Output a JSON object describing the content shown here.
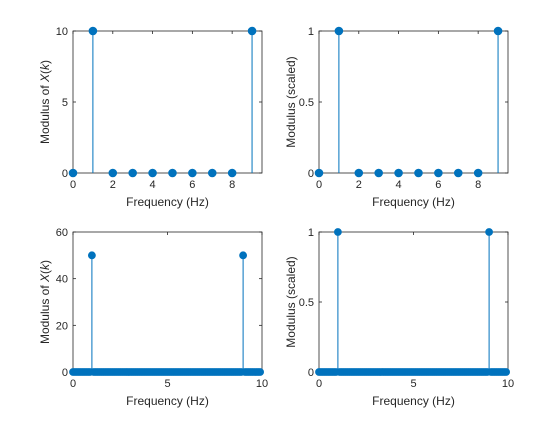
{
  "colors": {
    "stem": "#0072BD",
    "axis": "#262626",
    "background": "#ffffff"
  },
  "chart_data": [
    {
      "type": "stem",
      "position": "top-left",
      "xlabel": "Frequency (Hz)",
      "ylabel_parts": [
        "Modulus of ",
        "X",
        "(",
        "k",
        ")"
      ],
      "xlim": [
        0,
        9.5
      ],
      "ylim": [
        0,
        10
      ],
      "xticks": [
        0,
        2,
        4,
        6,
        8
      ],
      "xtick_labels": [
        "0",
        "2",
        "4",
        "6",
        "8"
      ],
      "yticks": [
        0,
        5,
        10
      ],
      "ytick_labels": [
        "0",
        "5",
        "10"
      ],
      "x": [
        0,
        1,
        2,
        3,
        4,
        5,
        6,
        7,
        8,
        9
      ],
      "y": [
        0,
        10,
        0,
        0,
        0,
        0,
        0,
        0,
        0,
        10
      ]
    },
    {
      "type": "stem",
      "position": "top-right",
      "xlabel": "Frequency (Hz)",
      "ylabel": "Modulus (scaled)",
      "xlim": [
        0,
        9.5
      ],
      "ylim": [
        0,
        1
      ],
      "xticks": [
        0,
        2,
        4,
        6,
        8
      ],
      "xtick_labels": [
        "0",
        "2",
        "4",
        "6",
        "8"
      ],
      "yticks": [
        0,
        0.5,
        1
      ],
      "ytick_labels": [
        "0",
        "0.5",
        "1"
      ],
      "x": [
        0,
        1,
        2,
        3,
        4,
        5,
        6,
        7,
        8,
        9
      ],
      "y": [
        0,
        1,
        0,
        0,
        0,
        0,
        0,
        0,
        0,
        1
      ]
    },
    {
      "type": "stem",
      "position": "bottom-left",
      "xlabel": "Frequency (Hz)",
      "ylabel_parts": [
        "Modulus of ",
        "X",
        "(",
        "k",
        ")"
      ],
      "xlim": [
        0,
        10
      ],
      "ylim": [
        0,
        60
      ],
      "xticks": [
        0,
        5,
        10
      ],
      "xtick_labels": [
        "0",
        "5",
        "10"
      ],
      "yticks": [
        0,
        20,
        40,
        60
      ],
      "ytick_labels": [
        "0",
        "20",
        "40",
        "60"
      ],
      "x_start": 0,
      "x_step": 0.1,
      "count": 100,
      "nonzero": [
        {
          "x": 1,
          "y": 50
        },
        {
          "x": 9,
          "y": 50
        }
      ]
    },
    {
      "type": "stem",
      "position": "bottom-right",
      "xlabel": "Frequency (Hz)",
      "ylabel": "Modulus (scaled)",
      "xlim": [
        0,
        10
      ],
      "ylim": [
        0,
        1
      ],
      "xticks": [
        0,
        5,
        10
      ],
      "xtick_labels": [
        "0",
        "5",
        "10"
      ],
      "yticks": [
        0,
        0.5,
        1
      ],
      "ytick_labels": [
        "0",
        "0.5",
        "1"
      ],
      "x_start": 0,
      "x_step": 0.1,
      "count": 100,
      "nonzero": [
        {
          "x": 1,
          "y": 1
        },
        {
          "x": 9,
          "y": 1
        }
      ]
    }
  ]
}
